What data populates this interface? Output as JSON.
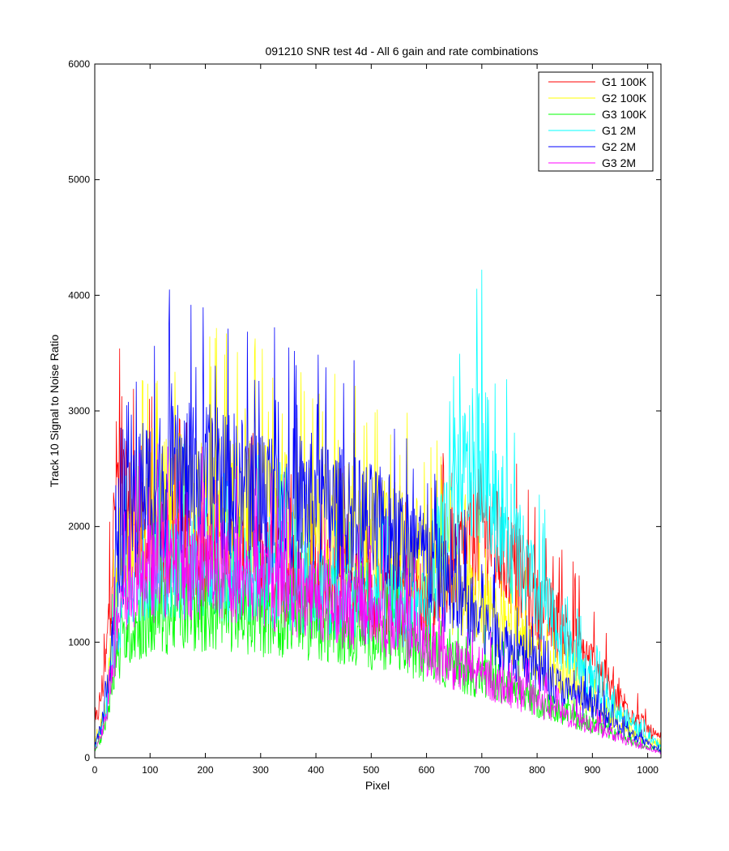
{
  "chart_data": {
    "type": "line",
    "title": "091210  SNR test 4d - All 6 gain and rate combinations",
    "xlabel": "Pixel",
    "ylabel": "Track 10 Signal to Noise Ratio",
    "xlim": [
      0,
      1024
    ],
    "ylim": [
      0,
      6000
    ],
    "x_ticks": [
      0,
      100,
      200,
      300,
      400,
      500,
      600,
      700,
      800,
      900,
      1000
    ],
    "y_ticks": [
      0,
      1000,
      2000,
      3000,
      4000,
      5000,
      6000
    ],
    "grid": false,
    "legend_position": "top-right",
    "series": [
      {
        "name": "G1 100K",
        "color": "#ff0000",
        "x": [
          0,
          10,
          20,
          30,
          40,
          60,
          80,
          100,
          150,
          200,
          250,
          300,
          350,
          400,
          450,
          500,
          550,
          600,
          650,
          700,
          750,
          800,
          850,
          900,
          950,
          1000,
          1024
        ],
        "y": [
          250,
          500,
          800,
          1600,
          2400,
          2100,
          1900,
          1850,
          1800,
          1750,
          1700,
          1650,
          1600,
          1550,
          1500,
          1450,
          1400,
          1350,
          1700,
          2000,
          1700,
          1300,
          1100,
          800,
          500,
          250,
          150
        ]
      },
      {
        "name": "G2 100K",
        "color": "#ffff00",
        "x": [
          0,
          10,
          20,
          30,
          40,
          60,
          80,
          100,
          150,
          200,
          250,
          300,
          350,
          400,
          450,
          500,
          550,
          600,
          650,
          700,
          750,
          800,
          850,
          900,
          950,
          1000,
          1024
        ],
        "y": [
          100,
          250,
          450,
          900,
          1400,
          1800,
          2000,
          2100,
          2200,
          2200,
          2200,
          2150,
          2100,
          2050,
          2000,
          1950,
          1850,
          1750,
          1450,
          1300,
          1100,
          900,
          700,
          450,
          280,
          150,
          90
        ]
      },
      {
        "name": "G3 100K",
        "color": "#00ff00",
        "x": [
          0,
          10,
          20,
          30,
          40,
          60,
          80,
          100,
          150,
          200,
          250,
          300,
          350,
          400,
          450,
          500,
          550,
          600,
          650,
          700,
          750,
          800,
          850,
          900,
          950,
          1000,
          1024
        ],
        "y": [
          70,
          160,
          300,
          650,
          900,
          1100,
          1150,
          1200,
          1250,
          1250,
          1250,
          1200,
          1200,
          1150,
          1100,
          1050,
          1000,
          900,
          800,
          700,
          600,
          480,
          380,
          280,
          180,
          90,
          50
        ]
      },
      {
        "name": "G1 2M",
        "color": "#00ffff",
        "x": [
          0,
          10,
          20,
          30,
          40,
          60,
          80,
          100,
          150,
          200,
          250,
          300,
          350,
          400,
          450,
          500,
          550,
          600,
          650,
          700,
          750,
          800,
          850,
          900,
          950,
          1000,
          1024
        ],
        "y": [
          90,
          220,
          400,
          800,
          1200,
          1500,
          1600,
          1650,
          1650,
          1650,
          1600,
          1550,
          1500,
          1450,
          1400,
          1350,
          1300,
          1250,
          2300,
          2600,
          1900,
          1400,
          1000,
          650,
          380,
          180,
          100
        ]
      },
      {
        "name": "G2 2M",
        "color": "#0000ff",
        "x": [
          0,
          10,
          20,
          30,
          40,
          60,
          80,
          100,
          150,
          200,
          250,
          300,
          350,
          400,
          450,
          500,
          550,
          600,
          650,
          700,
          750,
          800,
          850,
          900,
          950,
          1000,
          1024
        ],
        "y": [
          100,
          250,
          500,
          1000,
          1600,
          2000,
          2300,
          2350,
          2400,
          2400,
          2350,
          2300,
          2250,
          2200,
          2100,
          2000,
          1900,
          1700,
          1400,
          1150,
          950,
          750,
          580,
          420,
          260,
          120,
          60
        ]
      },
      {
        "name": "G3 2M",
        "color": "#ff00ff",
        "x": [
          0,
          10,
          20,
          30,
          40,
          60,
          80,
          100,
          150,
          200,
          250,
          300,
          350,
          400,
          450,
          500,
          550,
          600,
          650,
          700,
          750,
          800,
          850,
          900,
          950,
          1000,
          1024
        ],
        "y": [
          80,
          180,
          350,
          750,
          1100,
          1400,
          1550,
          1600,
          1650,
          1650,
          1600,
          1550,
          1450,
          1400,
          1300,
          1250,
          1150,
          950,
          800,
          700,
          600,
          480,
          370,
          270,
          170,
          80,
          40
        ]
      }
    ]
  }
}
